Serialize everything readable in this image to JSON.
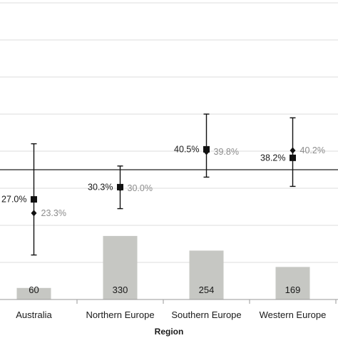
{
  "chart_data": {
    "type": "bar",
    "xlabel": "Region",
    "ylabel": "",
    "grid": true,
    "colors": {
      "bar": "#c6c7c3",
      "grid": "#dddddd",
      "axis": "#9a9a9a",
      "marker": "#111111",
      "reference_line": "#222222",
      "gray_label": "#8c8c8c"
    },
    "categories": [
      "Australia",
      "Northern Europe",
      "Southern Europe",
      "Western Europe"
    ],
    "bar_series": {
      "values": [
        60,
        330,
        254,
        169
      ],
      "value_labels": [
        "60",
        "330",
        "254",
        "169"
      ],
      "ylim": [
        0,
        600
      ]
    },
    "estimate_series": [
      {
        "marker": "square",
        "values": [
          27.0,
          30.3,
          40.5,
          38.2
        ],
        "value_labels": [
          "27.0%",
          "30.3%",
          "40.5%",
          "38.2%"
        ],
        "ci_lower": [
          12.0,
          24.5,
          33.0,
          30.5
        ],
        "ci_upper": [
          42.0,
          36.0,
          50.0,
          49.0
        ]
      },
      {
        "marker": "diamond",
        "values": [
          23.3,
          30.0,
          39.8,
          40.2
        ],
        "value_labels": [
          "23.3%",
          "30.0%",
          "39.8%",
          "40.2%"
        ]
      }
    ],
    "reference_value": 35.0,
    "estimate_ylim": [
      0,
      80
    ]
  }
}
